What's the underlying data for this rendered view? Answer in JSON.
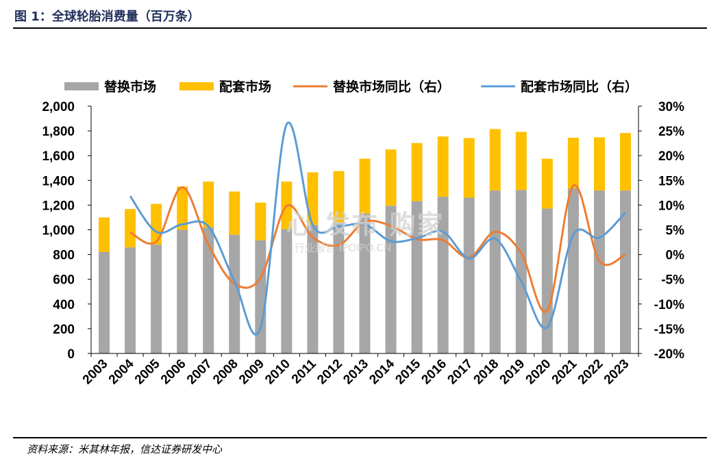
{
  "header": {
    "title": "图 1：全球轮胎消费量（百万条）"
  },
  "footer": {
    "source": "资料来源：米其林年报，信达证券研发中心"
  },
  "watermark": {
    "main": "心 发布 购家",
    "sub": "行业报告 IPOIPO.CN"
  },
  "colors": {
    "replacement": "#a6a6a6",
    "oe": "#ffc000",
    "replacement_yoy": "#ed7d31",
    "oe_yoy": "#5b9bd5"
  },
  "chart_data": {
    "type": "bar",
    "stacked": true,
    "categories": [
      "2003",
      "2004",
      "2005",
      "2006",
      "2007",
      "2008",
      "2009",
      "2010",
      "2011",
      "2012",
      "2013",
      "2014",
      "2015",
      "2016",
      "2017",
      "2018",
      "2019",
      "2020",
      "2021",
      "2022",
      "2023"
    ],
    "series": [
      {
        "name": "替换市场",
        "axis": "left",
        "kind": "bar",
        "values": [
          820,
          858,
          880,
          1000,
          1020,
          960,
          915,
          1005,
          1040,
          1060,
          1130,
          1195,
          1232,
          1268,
          1260,
          1318,
          1322,
          1172,
          1335,
          1318,
          1318
        ]
      },
      {
        "name": "配套市场",
        "axis": "left",
        "kind": "bar",
        "values": [
          280,
          310,
          330,
          350,
          370,
          350,
          305,
          385,
          425,
          415,
          445,
          455,
          470,
          487,
          482,
          497,
          470,
          403,
          410,
          430,
          465
        ]
      },
      {
        "name": "替换市场同比（右）",
        "axis": "right",
        "kind": "line",
        "values": [
          null,
          4.5,
          2.6,
          13.6,
          2.0,
          -5.9,
          -4.7,
          9.8,
          3.5,
          1.9,
          6.6,
          5.8,
          3.1,
          2.9,
          -0.6,
          4.6,
          0.3,
          -11.3,
          13.9,
          -1.3,
          0.0
        ]
      },
      {
        "name": "配套市场同比（右）",
        "axis": "right",
        "kind": "line",
        "values": [
          null,
          11.8,
          4.6,
          6.1,
          5.7,
          -5.4,
          -14.8,
          26.3,
          6.0,
          5.7,
          6.1,
          2.7,
          3.3,
          4.6,
          -0.8,
          3.2,
          -5.4,
          -14.7,
          4.0,
          3.4,
          8.5
        ]
      }
    ],
    "ylim_left": [
      0,
      2000
    ],
    "yticks_left": [
      "0",
      "200",
      "400",
      "600",
      "800",
      "1,000",
      "1,200",
      "1,400",
      "1,600",
      "1,800",
      "2,000"
    ],
    "ylim_right": [
      -20,
      30
    ],
    "yticks_right": [
      "-20%",
      "-15%",
      "-10%",
      "-5%",
      "0%",
      "5%",
      "10%",
      "15%",
      "20%",
      "25%",
      "30%"
    ],
    "legend_position": "top",
    "grid": false
  }
}
